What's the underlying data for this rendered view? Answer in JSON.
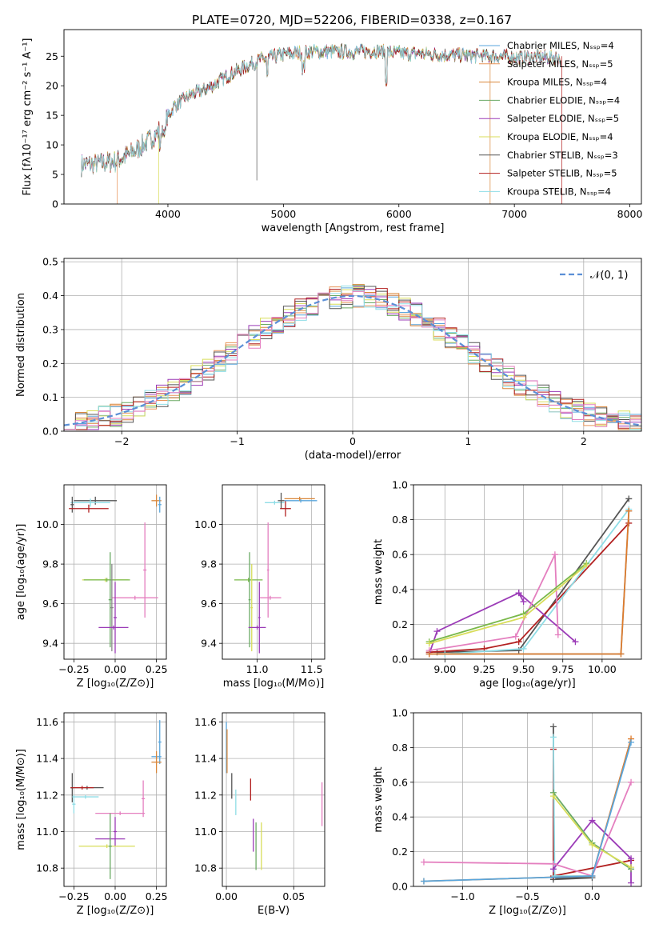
{
  "figure_title": "PLATE=0720, MJD=52206, FIBERID=0338, z=0.167",
  "colors": {
    "c0": "#5aa6dc",
    "c1": "#e8955a",
    "c2": "#d9873b",
    "c3": "#6aaa64",
    "c4": "#9b3bb7",
    "c5": "#d8dd5a",
    "c6": "#555555",
    "c7": "#b22020",
    "c8": "#8fdde6",
    "pink": "#e47fbf",
    "grey": "#888888",
    "green": "#79b84a",
    "blue": "#6a93d6",
    "yellowgreen": "#c6e34a",
    "orange": "#e07b2a"
  },
  "chart_data": [
    {
      "id": "spectrum",
      "type": "line",
      "title": "PLATE=0720, MJD=52206, FIBERID=0338, z=0.167",
      "xlabel": "wavelength [Angstrom, rest frame]",
      "ylabel": "Flux [fλ10⁻¹⁷ erg cm⁻² s⁻¹ A⁻¹]",
      "xlim": [
        3100,
        8100
      ],
      "ylim": [
        0,
        29.5
      ],
      "xticks": [
        4000,
        5000,
        6000,
        7000,
        8000
      ],
      "yticks": [
        0,
        5,
        10,
        15,
        20,
        25
      ],
      "grid": false,
      "legend_position": "right",
      "continuum": {
        "x": [
          3250,
          3400,
          3550,
          3700,
          3850,
          3950,
          4050,
          4200,
          4350,
          4500,
          4650,
          4800,
          5000,
          5200,
          5400,
          5600,
          5800,
          6000,
          6200,
          6400,
          6600,
          6800,
          7000,
          7200,
          7400
        ],
        "y": [
          6.6,
          6.9,
          7.2,
          8.8,
          10.9,
          13.0,
          16.5,
          18.5,
          19.6,
          21.5,
          23.0,
          24.4,
          25.3,
          25.7,
          25.8,
          25.7,
          25.9,
          25.5,
          25.4,
          25.2,
          25.1,
          25.0,
          24.8,
          24.9,
          24.7
        ]
      },
      "series": [
        {
          "name": "Chabrier MILES, Nₛₛₚ=4",
          "color": "#5aa6dc"
        },
        {
          "name": "Salpeter MILES, Nₛₛₚ=5",
          "color": "#e8955a"
        },
        {
          "name": "Kroupa MILES, Nₛₛₚ=4",
          "color": "#d9873b"
        },
        {
          "name": "Chabrier ELODIE, Nₛₛₚ=4",
          "color": "#6aaa64"
        },
        {
          "name": "Salpeter ELODIE, Nₛₛₚ=5",
          "color": "#9b3bb7"
        },
        {
          "name": "Kroupa ELODIE, Nₛₛₚ=4",
          "color": "#d8dd5a"
        },
        {
          "name": "Chabrier STELIB, Nₛₛₚ=3",
          "color": "#555555"
        },
        {
          "name": "Salpeter STELIB, Nₛₛₚ=5",
          "color": "#b22020"
        },
        {
          "name": "Kroupa STELIB, Nₛₛₚ=4",
          "color": "#8fdde6"
        }
      ]
    },
    {
      "id": "residuals",
      "type": "bar",
      "xlabel": "(data-model)/error",
      "ylabel": "Normed distribution",
      "xlim": [
        -2.5,
        2.5
      ],
      "ylim": [
        0,
        0.51
      ],
      "xticks": [
        -2,
        -1,
        0,
        1,
        2
      ],
      "yticks": [
        0.0,
        0.1,
        0.2,
        0.3,
        0.4,
        0.5
      ],
      "grid": true,
      "legend_position": "upper right",
      "legend_label": "𝒩(0, 1)",
      "bin_width": 0.1,
      "curve": {
        "name": "𝒩(0, 1)",
        "mean": 0,
        "sigma": 1,
        "color": "#5b8fd6",
        "dashed": true
      }
    },
    {
      "id": "age_vs_Z",
      "type": "scatter",
      "xlabel": "Z [log₁₀(Z/Z⊙)]",
      "ylabel": "age  [log₁₀(age/yr)]",
      "xlim": [
        -0.31,
        0.31
      ],
      "ylim": [
        9.32,
        10.2
      ],
      "xticks": [
        -0.25,
        0.0,
        0.25
      ],
      "yticks": [
        9.4,
        9.6,
        9.8,
        10.0
      ],
      "grid": true,
      "errorbars": [
        {
          "x": -0.12,
          "y": 10.12,
          "xerr": 0.13,
          "yerr": 0.02,
          "color": "#555555"
        },
        {
          "x": -0.15,
          "y": 10.11,
          "xerr": 0.12,
          "yerr": 0.02,
          "color": "#8fdde6"
        },
        {
          "x": -0.26,
          "y": 10.1,
          "xerr": 0.01,
          "yerr": 0.04,
          "color": "#555555"
        },
        {
          "x": -0.16,
          "y": 10.08,
          "xerr": 0.12,
          "yerr": 0.02,
          "color": "#b22020"
        },
        {
          "x": 0.25,
          "y": 10.12,
          "xerr": 0.03,
          "yerr": 0.03,
          "color": "#d9873b"
        },
        {
          "x": 0.27,
          "y": 10.1,
          "xerr": 0.01,
          "yerr": 0.04,
          "color": "#5aa6dc"
        },
        {
          "x": 0.18,
          "y": 9.77,
          "xerr": 0.01,
          "yerr": 0.24,
          "color": "#e47fbf"
        },
        {
          "x": 0.12,
          "y": 9.63,
          "xerr": 0.14,
          "yerr": 0.01,
          "color": "#e47fbf"
        },
        {
          "x": -0.06,
          "y": 9.72,
          "xerr": 0.14,
          "yerr": 0.01,
          "color": "#d8dd5a"
        },
        {
          "x": -0.05,
          "y": 9.72,
          "xerr": 0.14,
          "yerr": 0.01,
          "color": "#79b84a"
        },
        {
          "x": -0.03,
          "y": 9.62,
          "xerr": 0.01,
          "yerr": 0.24,
          "color": "#6aaa64"
        },
        {
          "x": -0.02,
          "y": 9.58,
          "xerr": 0.01,
          "yerr": 0.22,
          "color": "#888888"
        },
        {
          "x": -0.01,
          "y": 9.48,
          "xerr": 0.09,
          "yerr": 0.01,
          "color": "#9b3bb7"
        },
        {
          "x": 0.0,
          "y": 9.53,
          "xerr": 0.01,
          "yerr": 0.18,
          "color": "#9b3bb7"
        }
      ]
    },
    {
      "id": "age_vs_mass",
      "type": "scatter",
      "xlabel": "mass [log₁₀(M/M⊙)]",
      "ylabel": "",
      "xlim": [
        10.68,
        11.62
      ],
      "ylim": [
        9.32,
        10.2
      ],
      "xticks": [
        11.0,
        11.5
      ],
      "yticks": [
        9.4,
        9.6,
        9.8,
        10.0
      ],
      "grid": true,
      "errorbars": [
        {
          "x": 11.16,
          "y": 10.11,
          "xerr": 0.09,
          "yerr": 0.01,
          "color": "#8fdde6"
        },
        {
          "x": 11.22,
          "y": 10.12,
          "xerr": 0.03,
          "yerr": 0.04,
          "color": "#555555"
        },
        {
          "x": 11.26,
          "y": 10.08,
          "xerr": 0.05,
          "yerr": 0.04,
          "color": "#b22020"
        },
        {
          "x": 11.4,
          "y": 10.12,
          "xerr": 0.15,
          "yerr": 0.01,
          "color": "#5aa6dc"
        },
        {
          "x": 11.39,
          "y": 10.13,
          "xerr": 0.14,
          "yerr": 0.01,
          "color": "#d9873b"
        },
        {
          "x": 11.1,
          "y": 9.77,
          "xerr": 0.01,
          "yerr": 0.24,
          "color": "#e47fbf"
        },
        {
          "x": 11.12,
          "y": 9.63,
          "xerr": 0.1,
          "yerr": 0.01,
          "color": "#e47fbf"
        },
        {
          "x": 10.92,
          "y": 9.72,
          "xerr": 0.13,
          "yerr": 0.01,
          "color": "#79b84a"
        },
        {
          "x": 10.93,
          "y": 9.62,
          "xerr": 0.01,
          "yerr": 0.24,
          "color": "#6aaa64"
        },
        {
          "x": 10.95,
          "y": 9.58,
          "xerr": 0.01,
          "yerr": 0.22,
          "color": "#d8dd5a"
        },
        {
          "x": 11.0,
          "y": 9.48,
          "xerr": 0.08,
          "yerr": 0.01,
          "color": "#9b3bb7"
        },
        {
          "x": 11.02,
          "y": 9.53,
          "xerr": 0.01,
          "yerr": 0.18,
          "color": "#9b3bb7"
        }
      ]
    },
    {
      "id": "mass_weight_vs_age",
      "type": "line",
      "xlabel": "age  [log₁₀(age/yr)]",
      "ylabel": "mass weight",
      "xlim": [
        8.8,
        10.25
      ],
      "ylim": [
        0,
        1.0
      ],
      "xticks": [
        9.0,
        9.25,
        9.5,
        9.75,
        10.0
      ],
      "yticks": [
        0.0,
        0.2,
        0.4,
        0.6,
        0.8,
        1.0
      ],
      "grid": true,
      "series": [
        {
          "color": "#555555",
          "x": [
            8.95,
            9.47,
            10.17
          ],
          "y": [
            0.04,
            0.05,
            0.92
          ]
        },
        {
          "color": "#b22020",
          "x": [
            8.9,
            9.25,
            9.47,
            10.17
          ],
          "y": [
            0.04,
            0.06,
            0.1,
            0.78
          ]
        },
        {
          "color": "#8fdde6",
          "x": [
            9.0,
            9.5,
            10.17
          ],
          "y": [
            0.03,
            0.06,
            0.86
          ]
        },
        {
          "color": "#9b3bb7",
          "x": [
            8.9,
            8.95,
            9.47,
            9.83
          ],
          "y": [
            0.03,
            0.16,
            0.38,
            0.1
          ]
        },
        {
          "color": "#9b3bb7",
          "x": [
            9.47,
            9.5
          ],
          "y": [
            0.38,
            0.33
          ]
        },
        {
          "color": "#e47fbf",
          "x": [
            8.9,
            9.45,
            9.7,
            9.72
          ],
          "y": [
            0.05,
            0.13,
            0.6,
            0.14
          ]
        },
        {
          "color": "#79b84a",
          "x": [
            8.9,
            9.5,
            9.9
          ],
          "y": [
            0.1,
            0.26,
            0.55
          ]
        },
        {
          "color": "#d8dd5a",
          "x": [
            8.9,
            9.5,
            9.9
          ],
          "y": [
            0.09,
            0.24,
            0.54
          ]
        },
        {
          "color": "#5aa6dc",
          "x": [
            8.9,
            10.12,
            10.17
          ],
          "y": [
            0.03,
            0.03,
            0.85
          ]
        },
        {
          "color": "#e07b2a",
          "x": [
            8.9,
            10.12,
            10.17
          ],
          "y": [
            0.03,
            0.03,
            0.85
          ]
        }
      ]
    },
    {
      "id": "mass_vs_Z",
      "type": "scatter",
      "xlabel": "Z [log₁₀(Z/Z⊙)]",
      "ylabel": "mass [log₁₀(M/M⊙)]",
      "xlim": [
        -0.31,
        0.31
      ],
      "ylim": [
        10.7,
        11.65
      ],
      "xticks": [
        -0.25,
        0.0,
        0.25
      ],
      "yticks": [
        10.8,
        11.0,
        11.2,
        11.4,
        11.6
      ],
      "grid": true,
      "errorbars": [
        {
          "x": -0.26,
          "y": 11.24,
          "xerr": 0.01,
          "yerr": 0.08,
          "color": "#555555"
        },
        {
          "x": -0.17,
          "y": 11.24,
          "xerr": 0.1,
          "yerr": 0.01,
          "color": "#555555"
        },
        {
          "x": -0.2,
          "y": 11.24,
          "xerr": 0.07,
          "yerr": 0.01,
          "color": "#b22020"
        },
        {
          "x": -0.18,
          "y": 11.19,
          "xerr": 0.08,
          "yerr": 0.01,
          "color": "#8fdde6"
        },
        {
          "x": -0.25,
          "y": 11.15,
          "xerr": 0.01,
          "yerr": 0.05,
          "color": "#8fdde6"
        },
        {
          "x": 0.27,
          "y": 11.49,
          "xerr": 0.01,
          "yerr": 0.12,
          "color": "#5aa6dc"
        },
        {
          "x": 0.25,
          "y": 11.41,
          "xerr": 0.03,
          "yerr": 0.01,
          "color": "#5aa6dc"
        },
        {
          "x": 0.25,
          "y": 11.38,
          "xerr": 0.03,
          "yerr": 0.06,
          "color": "#d9873b"
        },
        {
          "x": 0.17,
          "y": 11.18,
          "xerr": 0.01,
          "yerr": 0.1,
          "color": "#e47fbf"
        },
        {
          "x": 0.03,
          "y": 11.1,
          "xerr": 0.15,
          "yerr": 0.01,
          "color": "#e47fbf"
        },
        {
          "x": -0.03,
          "y": 10.96,
          "xerr": 0.09,
          "yerr": 0.01,
          "color": "#9b3bb7"
        },
        {
          "x": 0.0,
          "y": 11.0,
          "xerr": 0.01,
          "yerr": 0.08,
          "color": "#9b3bb7"
        },
        {
          "x": -0.05,
          "y": 10.92,
          "xerr": 0.17,
          "yerr": 0.01,
          "color": "#d8dd5a"
        },
        {
          "x": -0.03,
          "y": 10.92,
          "xerr": 0.01,
          "yerr": 0.18,
          "color": "#6aaa64"
        }
      ]
    },
    {
      "id": "mass_vs_EBV",
      "type": "scatter",
      "xlabel": "E(B-V)",
      "ylabel": "",
      "xlim": [
        -0.003,
        0.073
      ],
      "ylim": [
        10.7,
        11.65
      ],
      "xticks": [
        0.0,
        0.05
      ],
      "yticks": [
        10.8,
        11.0,
        11.2,
        11.4,
        11.6
      ],
      "grid": true,
      "errorbars": [
        {
          "x": 0.0,
          "y": 11.46,
          "xerr": 0.0,
          "yerr": 0.14,
          "color": "#5aa6dc"
        },
        {
          "x": 0.0005,
          "y": 11.44,
          "xerr": 0.0,
          "yerr": 0.12,
          "color": "#d9873b"
        },
        {
          "x": 0.004,
          "y": 11.25,
          "xerr": 0.0,
          "yerr": 0.07,
          "color": "#555555"
        },
        {
          "x": 0.007,
          "y": 11.16,
          "xerr": 0.0,
          "yerr": 0.07,
          "color": "#8fdde6"
        },
        {
          "x": 0.018,
          "y": 11.23,
          "xerr": 0.0,
          "yerr": 0.06,
          "color": "#b22020"
        },
        {
          "x": 0.02,
          "y": 10.98,
          "xerr": 0.0,
          "yerr": 0.09,
          "color": "#9b3bb7"
        },
        {
          "x": 0.022,
          "y": 10.92,
          "xerr": 0.0,
          "yerr": 0.13,
          "color": "#6aaa64"
        },
        {
          "x": 0.026,
          "y": 10.92,
          "xerr": 0.0,
          "yerr": 0.13,
          "color": "#d8dd5a"
        },
        {
          "x": 0.071,
          "y": 11.15,
          "xerr": 0.0,
          "yerr": 0.12,
          "color": "#e47fbf"
        }
      ]
    },
    {
      "id": "mass_weight_vs_Z",
      "type": "line",
      "xlabel": "Z [log₁₀(Z/Z⊙)]",
      "ylabel": "mass weight",
      "xlim": [
        -1.38,
        0.38
      ],
      "ylim": [
        0,
        1.0
      ],
      "xticks": [
        -1.0,
        -0.5,
        0.0
      ],
      "yticks": [
        0.0,
        0.2,
        0.4,
        0.6,
        0.8,
        1.0
      ],
      "grid": true,
      "series": [
        {
          "color": "#555555",
          "x": [
            -0.3,
            -0.3,
            0.0,
            -0.3
          ],
          "y": [
            0.92,
            0.04,
            0.05,
            0.05
          ]
        },
        {
          "color": "#b22020",
          "x": [
            -0.3,
            -0.3,
            0.3
          ],
          "y": [
            0.79,
            0.06,
            0.15
          ]
        },
        {
          "color": "#8fdde6",
          "x": [
            -0.3,
            -0.29,
            0.0
          ],
          "y": [
            0.86,
            0.06,
            0.06
          ]
        },
        {
          "color": "#9b3bb7",
          "x": [
            -0.3,
            0.0,
            0.3,
            0.3
          ],
          "y": [
            0.1,
            0.38,
            0.16,
            0.02
          ]
        },
        {
          "color": "#e47fbf",
          "x": [
            -1.3,
            -0.3,
            0.0,
            0.3
          ],
          "y": [
            0.14,
            0.13,
            0.06,
            0.6
          ]
        },
        {
          "color": "#6aaa64",
          "x": [
            -0.3,
            0.0,
            0.3
          ],
          "y": [
            0.54,
            0.25,
            0.1
          ]
        },
        {
          "color": "#d8dd5a",
          "x": [
            -0.3,
            0.0,
            0.3
          ],
          "y": [
            0.52,
            0.24,
            0.11
          ]
        },
        {
          "color": "#e07b2a",
          "x": [
            -1.3,
            0.0,
            0.3
          ],
          "y": [
            0.03,
            0.06,
            0.85
          ]
        },
        {
          "color": "#5aa6dc",
          "x": [
            -1.3,
            0.0,
            0.3
          ],
          "y": [
            0.03,
            0.06,
            0.83
          ]
        }
      ]
    }
  ]
}
